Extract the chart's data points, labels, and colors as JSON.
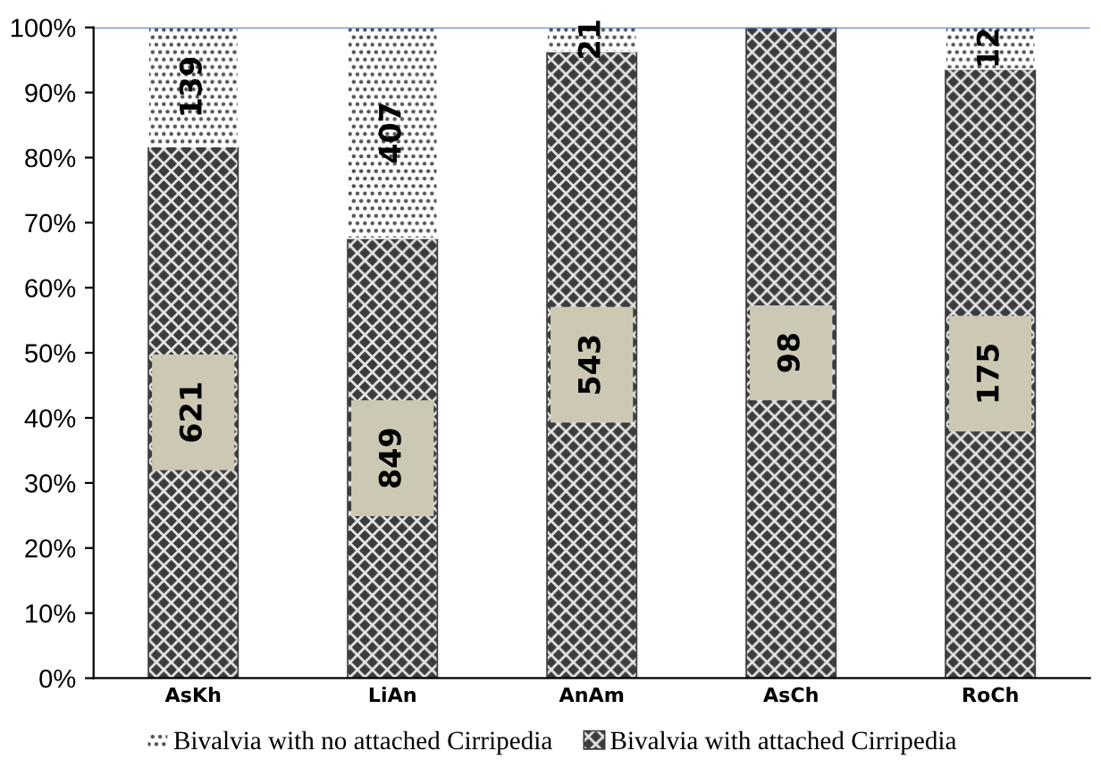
{
  "chart_data": {
    "type": "bar",
    "stacked": true,
    "categories": [
      "AsKh",
      "LiAn",
      "AnAm",
      "AsCh",
      "RoCh"
    ],
    "series": [
      {
        "name": "Bivalvia with attached Cirripedia",
        "color": "#3c3c3c",
        "values": [
          81.7,
          67.6,
          96.3,
          100,
          93.6
        ]
      },
      {
        "name": "Bivalvia with no attached Cirripedia",
        "color": "#ffffff",
        "values": [
          18.3,
          32.4,
          3.7,
          0,
          6.4
        ]
      }
    ],
    "annotations": [
      "621",
      "849",
      "543",
      "98",
      "175",
      "139",
      "407",
      "21",
      "12"
    ],
    "ylim": [
      0,
      100
    ],
    "yticks": [
      {
        "value": 0,
        "label": "0%"
      },
      {
        "value": 10,
        "label": "10%"
      },
      {
        "value": 20,
        "label": "20%"
      },
      {
        "value": 30,
        "label": "30%"
      },
      {
        "value": 40,
        "label": "40%"
      },
      {
        "value": 50,
        "label": "50%"
      },
      {
        "value": 60,
        "label": "60%"
      },
      {
        "value": 70,
        "label": "70%"
      },
      {
        "value": 80,
        "label": "80%"
      },
      {
        "value": 90,
        "label": "90%"
      },
      {
        "value": 100,
        "label": "100%"
      }
    ],
    "legend": "bottom",
    "grid": false
  }
}
